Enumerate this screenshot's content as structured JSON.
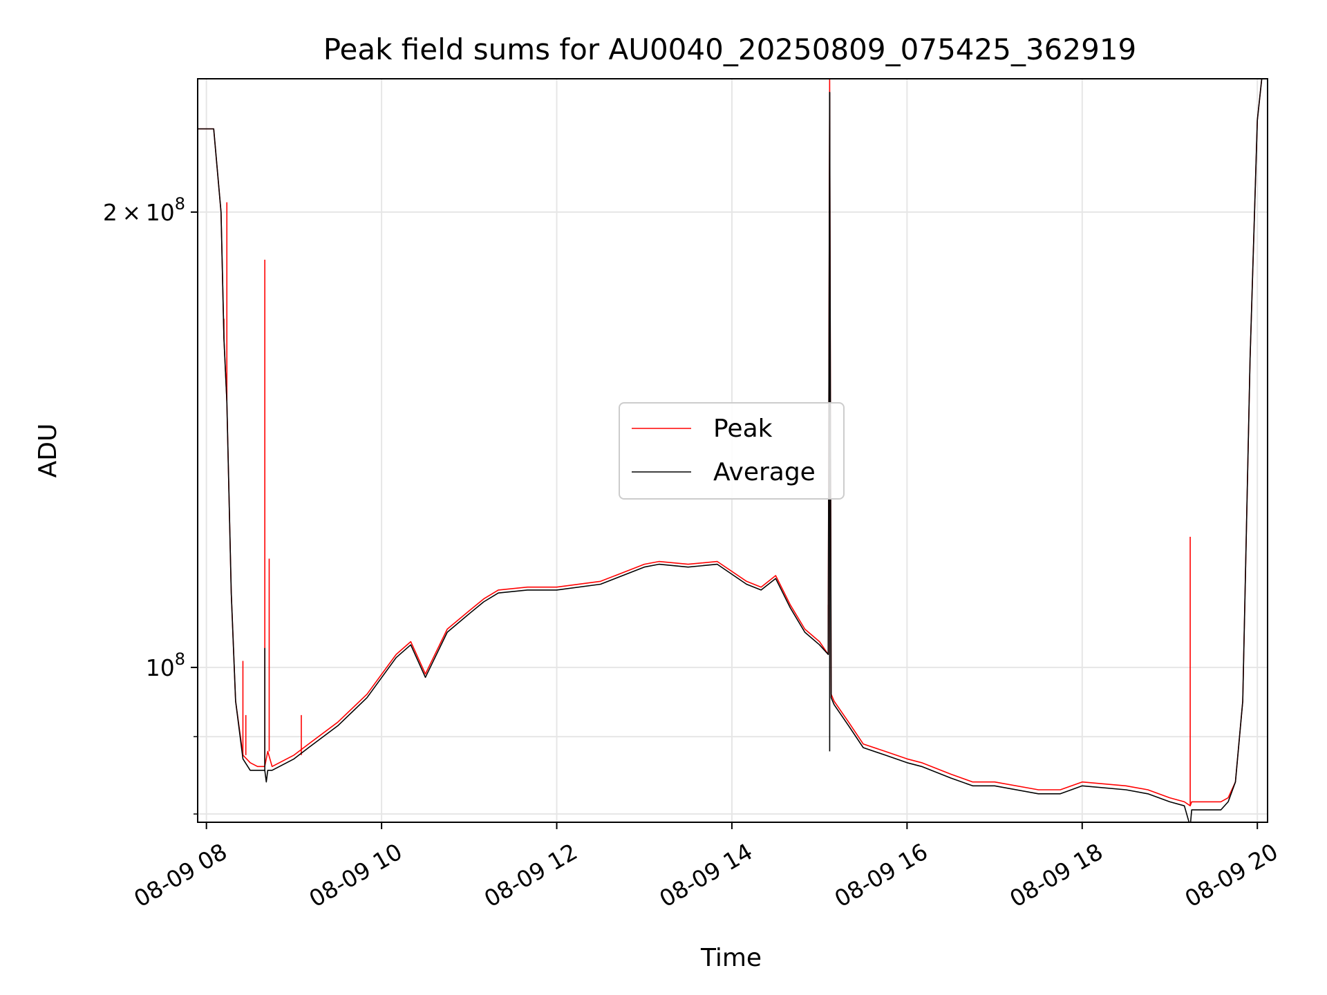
{
  "chart_data": {
    "type": "line",
    "title": "Peak field sums for AU0040_20250809_075425_362919",
    "xlabel": "Time",
    "ylabel": "ADU",
    "y_scale": "log",
    "ylim": [
      79000000,
      245000000
    ],
    "xlim": [
      "2025-08-09 07:54",
      "2025-08-09 20:07"
    ],
    "grid": true,
    "legend_position": "center",
    "x_ticks": [
      {
        "value": "2025-08-09 08:00",
        "label": "08-09 08"
      },
      {
        "value": "2025-08-09 10:00",
        "label": "08-09 10"
      },
      {
        "value": "2025-08-09 12:00",
        "label": "08-09 12"
      },
      {
        "value": "2025-08-09 14:00",
        "label": "08-09 14"
      },
      {
        "value": "2025-08-09 16:00",
        "label": "08-09 16"
      },
      {
        "value": "2025-08-09 18:00",
        "label": "08-09 18"
      },
      {
        "value": "2025-08-09 20:00",
        "label": "08-09 20"
      }
    ],
    "y_ticks": [
      {
        "value": 100000000,
        "base": "10",
        "exp": "8",
        "mantissa": ""
      },
      {
        "value": 200000000,
        "base": "10",
        "exp": "8",
        "mantissa": "2"
      }
    ],
    "y_minor_ticks": [
      80000000,
      90000000
    ],
    "series": [
      {
        "name": "Peak",
        "color": "#ff0000",
        "x": [
          "2025-08-09 07:54",
          "2025-08-09 08:00",
          "2025-08-09 08:05",
          "2025-08-09 08:10",
          "2025-08-09 08:12",
          "2025-08-09 08:14",
          "2025-08-09 08:17",
          "2025-08-09 08:20",
          "2025-08-09 08:25",
          "2025-08-09 08:30",
          "2025-08-09 08:35",
          "2025-08-09 08:40",
          "2025-08-09 08:42",
          "2025-08-09 08:45",
          "2025-08-09 08:50",
          "2025-08-09 09:00",
          "2025-08-09 09:10",
          "2025-08-09 09:30",
          "2025-08-09 09:50",
          "2025-08-09 10:10",
          "2025-08-09 10:20",
          "2025-08-09 10:30",
          "2025-08-09 10:45",
          "2025-08-09 11:00",
          "2025-08-09 11:10",
          "2025-08-09 11:20",
          "2025-08-09 11:40",
          "2025-08-09 12:00",
          "2025-08-09 12:30",
          "2025-08-09 13:00",
          "2025-08-09 13:10",
          "2025-08-09 13:30",
          "2025-08-09 13:50",
          "2025-08-09 14:10",
          "2025-08-09 14:20",
          "2025-08-09 14:30",
          "2025-08-09 14:40",
          "2025-08-09 14:50",
          "2025-08-09 15:00",
          "2025-08-09 15:06",
          "2025-08-09 15:07",
          "2025-08-09 15:08",
          "2025-08-09 15:10",
          "2025-08-09 15:20",
          "2025-08-09 15:30",
          "2025-08-09 15:45",
          "2025-08-09 16:00",
          "2025-08-09 16:10",
          "2025-08-09 16:30",
          "2025-08-09 16:45",
          "2025-08-09 17:00",
          "2025-08-09 17:30",
          "2025-08-09 17:45",
          "2025-08-09 18:00",
          "2025-08-09 18:30",
          "2025-08-09 18:45",
          "2025-08-09 19:00",
          "2025-08-09 19:10",
          "2025-08-09 19:14",
          "2025-08-09 19:15",
          "2025-08-09 19:20",
          "2025-08-09 19:35",
          "2025-08-09 19:40",
          "2025-08-09 19:45",
          "2025-08-09 19:50",
          "2025-08-09 19:55",
          "2025-08-09 20:00",
          "2025-08-09 20:03",
          "2025-08-09 20:07"
        ],
        "y": [
          227000000,
          227000000,
          227000000,
          200000000,
          165000000,
          150000000,
          112000000,
          95000000,
          87500000,
          86500000,
          86000000,
          86000000,
          88000000,
          86000000,
          86500000,
          87500000,
          89000000,
          92000000,
          96000000,
          102000000,
          104000000,
          99000000,
          106000000,
          109000000,
          111000000,
          112500000,
          113000000,
          113000000,
          114000000,
          117000000,
          117500000,
          117000000,
          117500000,
          114000000,
          113000000,
          115000000,
          110000000,
          106000000,
          104000000,
          102000000,
          245000000,
          96000000,
          95000000,
          92000000,
          89000000,
          88000000,
          87000000,
          86500000,
          85000000,
          84000000,
          84000000,
          83000000,
          83000000,
          84000000,
          83500000,
          83000000,
          82000000,
          81500000,
          81000000,
          81500000,
          81500000,
          81500000,
          82000000,
          84000000,
          95000000,
          160000000,
          230000000,
          245000000,
          245000000
        ],
        "spikes": [
          {
            "x": "2025-08-09 08:12",
            "y": 170000000
          },
          {
            "x": "2025-08-09 08:14",
            "y": 203000000
          },
          {
            "x": "2025-08-09 08:25",
            "y": 101000000
          },
          {
            "x": "2025-08-09 08:27",
            "y": 93000000
          },
          {
            "x": "2025-08-09 08:40",
            "y": 186000000
          },
          {
            "x": "2025-08-09 08:43",
            "y": 118000000
          },
          {
            "x": "2025-08-09 09:05",
            "y": 93000000
          },
          {
            "x": "2025-08-09 15:06",
            "y": 110000000
          },
          {
            "x": "2025-08-09 19:14",
            "y": 122000000
          }
        ]
      },
      {
        "name": "Average",
        "color": "#000000",
        "x": [
          "2025-08-09 07:54",
          "2025-08-09 08:00",
          "2025-08-09 08:05",
          "2025-08-09 08:10",
          "2025-08-09 08:12",
          "2025-08-09 08:14",
          "2025-08-09 08:17",
          "2025-08-09 08:20",
          "2025-08-09 08:25",
          "2025-08-09 08:30",
          "2025-08-09 08:35",
          "2025-08-09 08:40",
          "2025-08-09 08:41",
          "2025-08-09 08:42",
          "2025-08-09 08:45",
          "2025-08-09 08:50",
          "2025-08-09 09:00",
          "2025-08-09 09:10",
          "2025-08-09 09:30",
          "2025-08-09 09:50",
          "2025-08-09 10:10",
          "2025-08-09 10:20",
          "2025-08-09 10:30",
          "2025-08-09 10:45",
          "2025-08-09 11:00",
          "2025-08-09 11:10",
          "2025-08-09 11:20",
          "2025-08-09 11:40",
          "2025-08-09 12:00",
          "2025-08-09 12:30",
          "2025-08-09 13:00",
          "2025-08-09 13:10",
          "2025-08-09 13:30",
          "2025-08-09 13:50",
          "2025-08-09 14:10",
          "2025-08-09 14:20",
          "2025-08-09 14:30",
          "2025-08-09 14:40",
          "2025-08-09 14:50",
          "2025-08-09 15:00",
          "2025-08-09 15:06",
          "2025-08-09 15:07",
          "2025-08-09 15:08",
          "2025-08-09 15:10",
          "2025-08-09 15:20",
          "2025-08-09 15:30",
          "2025-08-09 15:45",
          "2025-08-09 16:00",
          "2025-08-09 16:10",
          "2025-08-09 16:30",
          "2025-08-09 16:45",
          "2025-08-09 17:00",
          "2025-08-09 17:30",
          "2025-08-09 17:45",
          "2025-08-09 18:00",
          "2025-08-09 18:30",
          "2025-08-09 18:45",
          "2025-08-09 19:00",
          "2025-08-09 19:10",
          "2025-08-09 19:14",
          "2025-08-09 19:15",
          "2025-08-09 19:20",
          "2025-08-09 19:35",
          "2025-08-09 19:40",
          "2025-08-09 19:45",
          "2025-08-09 19:50",
          "2025-08-09 19:55",
          "2025-08-09 20:00",
          "2025-08-09 20:03",
          "2025-08-09 20:07"
        ],
        "y": [
          227000000,
          227000000,
          227000000,
          200000000,
          165000000,
          150000000,
          112000000,
          95000000,
          87000000,
          85500000,
          85500000,
          85500000,
          84000000,
          85500000,
          85500000,
          86000000,
          87000000,
          88500000,
          91500000,
          95500000,
          101500000,
          103500000,
          98500000,
          105500000,
          108500000,
          110500000,
          112000000,
          112500000,
          112500000,
          113500000,
          116500000,
          117000000,
          116500000,
          117000000,
          113500000,
          112500000,
          114500000,
          109500000,
          105500000,
          103500000,
          102000000,
          240000000,
          95500000,
          94500000,
          91500000,
          88500000,
          87500000,
          86500000,
          86000000,
          84500000,
          83500000,
          83500000,
          82500000,
          82500000,
          83500000,
          83000000,
          82500000,
          81500000,
          81000000,
          78500000,
          80500000,
          80500000,
          80500000,
          81500000,
          84000000,
          95000000,
          160000000,
          230000000,
          245000000,
          245000000
        ],
        "spikes": [
          {
            "x": "2025-08-09 08:40",
            "y": 103000000
          },
          {
            "x": "2025-08-09 15:07",
            "y": 88000000
          },
          {
            "x": "2025-08-09 19:14",
            "y": 79000000
          }
        ]
      }
    ]
  }
}
